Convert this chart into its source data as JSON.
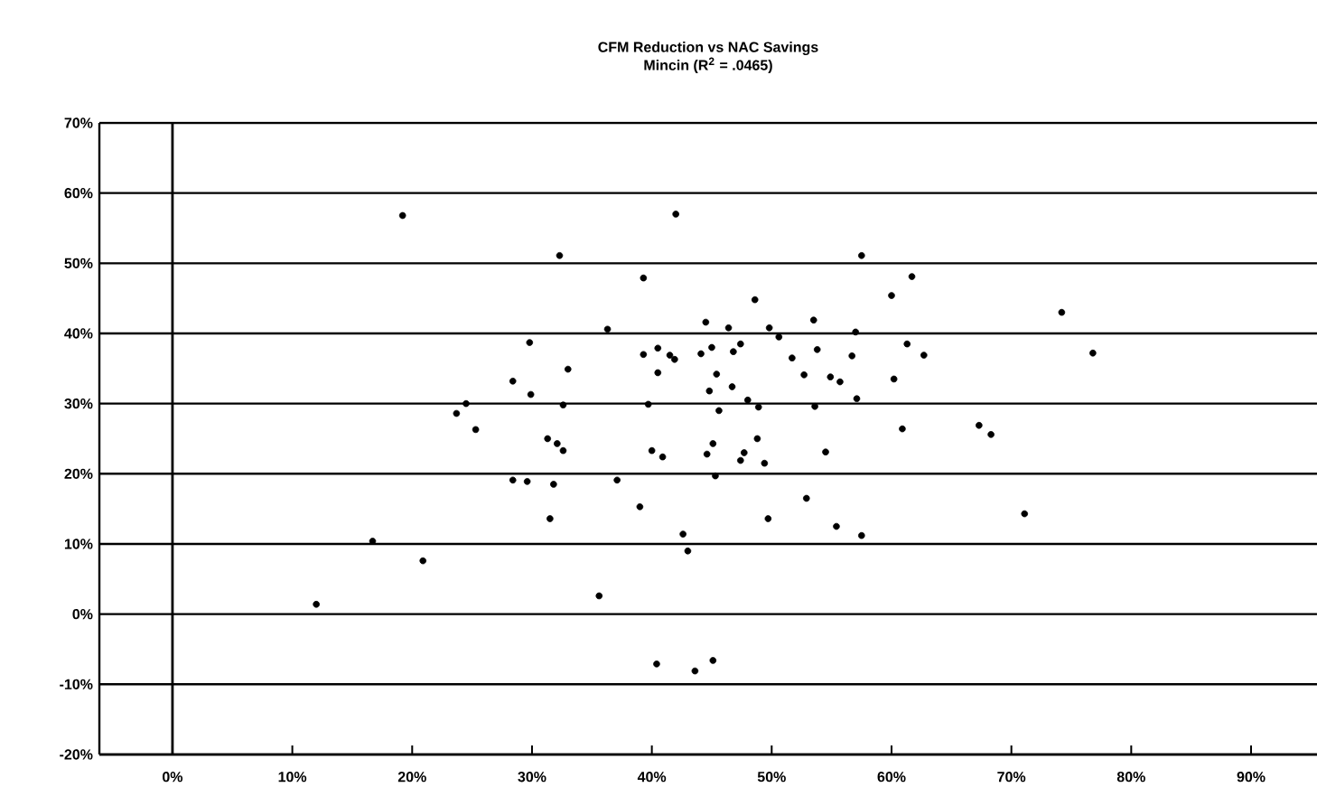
{
  "chart_data": {
    "type": "scatter",
    "title": "CFM Reduction vs NAC Savings",
    "subtitle": "Mincin (R$^{2}$ = .0465)",
    "xlim": [
      -6.1,
      95.5
    ],
    "ylim": [
      -20,
      70
    ],
    "xticks": [
      {
        "value": 0,
        "label": "0%"
      },
      {
        "value": 10,
        "label": "10%"
      },
      {
        "value": 20,
        "label": "20%"
      },
      {
        "value": 30,
        "label": "30%"
      },
      {
        "value": 40,
        "label": "40%"
      },
      {
        "value": 50,
        "label": "50%"
      },
      {
        "value": 60,
        "label": "60%"
      },
      {
        "value": 70,
        "label": "70%"
      },
      {
        "value": 80,
        "label": "80%"
      },
      {
        "value": 90,
        "label": "90%"
      }
    ],
    "yticks": [
      {
        "value": -20,
        "label": "-20%"
      },
      {
        "value": -10,
        "label": "-10%"
      },
      {
        "value": 0,
        "label": "0%"
      },
      {
        "value": 10,
        "label": "10%"
      },
      {
        "value": 20,
        "label": "20%"
      },
      {
        "value": 30,
        "label": "30%"
      },
      {
        "value": 40,
        "label": "40%"
      },
      {
        "value": 50,
        "label": "50%"
      },
      {
        "value": 60,
        "label": "60%"
      },
      {
        "value": 70,
        "label": "70%"
      }
    ],
    "grid": "y",
    "marker": "circle",
    "ref_lines": [
      {
        "axis": "x",
        "value": 0,
        "color": "#000000"
      }
    ],
    "series": [
      {
        "color": "#000000",
        "x": [
          19.2,
          32.3,
          39.3,
          36.3,
          29.8,
          39.3,
          40.5,
          40.5,
          33.0,
          28.4,
          29.9,
          32.6,
          39.7,
          24.5,
          23.7,
          25.3,
          31.3,
          32.1,
          32.6,
          40.0,
          40.9,
          28.4,
          29.6,
          31.8,
          37.1,
          39.0,
          31.5,
          16.7,
          20.9,
          12.0,
          35.6,
          40.4,
          42.6,
          43.0,
          49.7,
          55.4,
          57.5,
          71.1,
          43.6,
          45.1,
          42.0,
          57.5,
          61.7,
          60.0,
          48.6,
          74.2,
          44.5,
          46.4,
          49.8,
          53.5,
          50.6,
          57.0,
          41.9,
          41.5,
          44.1,
          45.0,
          46.8,
          47.4,
          51.7,
          53.8,
          56.7,
          61.3,
          62.7,
          76.8,
          45.4,
          52.7,
          54.9,
          55.7,
          60.2,
          44.8,
          46.7,
          45.6,
          48.0,
          48.9,
          53.6,
          57.1,
          60.9,
          67.3,
          68.3,
          45.1,
          44.6,
          48.8,
          47.7,
          47.4,
          49.4,
          54.5,
          45.3,
          52.9
        ],
        "values": [
          56.8,
          51.1,
          47.9,
          40.6,
          38.7,
          37.0,
          37.9,
          34.4,
          34.9,
          33.2,
          31.3,
          29.8,
          29.9,
          30.0,
          28.6,
          26.3,
          25.0,
          24.3,
          23.3,
          23.3,
          22.4,
          19.1,
          18.9,
          18.5,
          19.1,
          15.3,
          13.6,
          10.4,
          7.6,
          1.4,
          2.6,
          -7.1,
          11.4,
          9.0,
          13.6,
          12.5,
          11.2,
          14.3,
          -8.1,
          -6.6,
          57.0,
          51.1,
          48.1,
          45.4,
          44.8,
          43.0,
          41.6,
          40.8,
          40.8,
          41.9,
          39.5,
          40.2,
          36.3,
          36.9,
          37.1,
          38.0,
          37.4,
          38.5,
          36.5,
          37.7,
          36.8,
          38.5,
          36.9,
          37.2,
          34.2,
          34.1,
          33.8,
          33.1,
          33.5,
          31.8,
          32.4,
          29.0,
          30.5,
          29.5,
          29.6,
          30.7,
          26.4,
          26.9,
          25.6,
          24.3,
          22.8,
          25.0,
          23.0,
          21.9,
          21.5,
          23.1,
          19.7,
          16.5
        ]
      }
    ]
  }
}
